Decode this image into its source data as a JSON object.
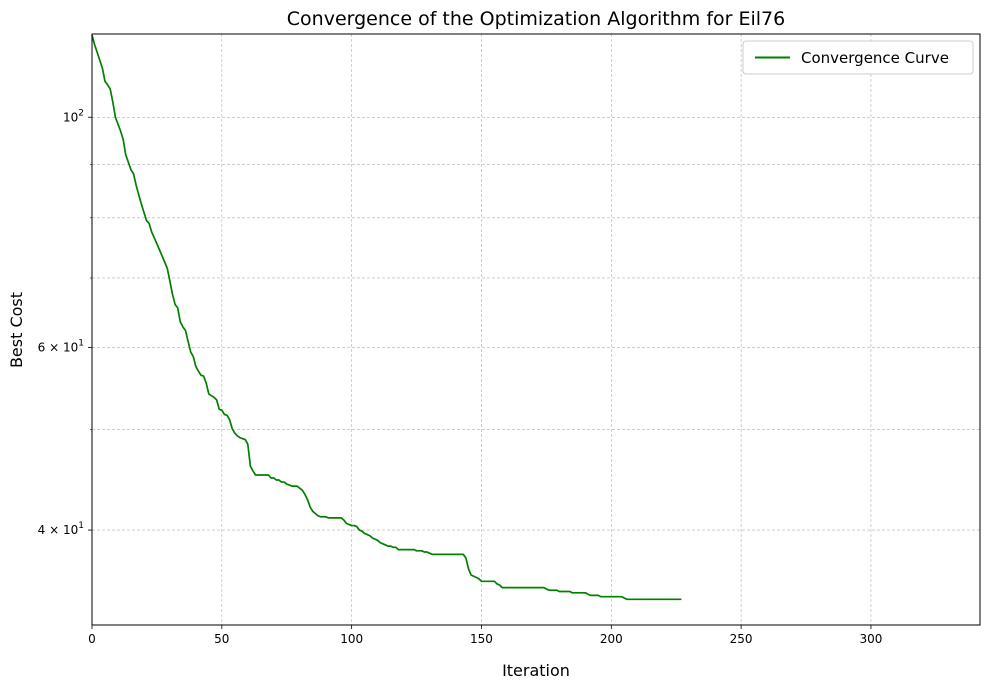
{
  "chart_data": {
    "type": "line",
    "title": "Convergence of the Optimization Algorithm for Eil76",
    "xlabel": "Iteration",
    "ylabel": "Best Cost",
    "xlim": [
      0,
      342
    ],
    "ylim": [
      32.4,
      120.3
    ],
    "yscale": "log",
    "grid": true,
    "legend_position": "top-right",
    "x_ticks": [
      0,
      50,
      100,
      150,
      200,
      250,
      300
    ],
    "y_major_ticks": [
      {
        "value": 100,
        "base": "10",
        "exp": "2",
        "mult": ""
      },
      {
        "value": 60,
        "base": "10",
        "exp": "1",
        "mult": "6 × "
      },
      {
        "value": 40,
        "base": "10",
        "exp": "1",
        "mult": "4 × "
      }
    ],
    "y_minor_ticks": [
      90,
      80,
      70,
      50
    ],
    "series": [
      {
        "name": "Convergence Curve",
        "color": "#008000",
        "points": [
          [
            0,
            120
          ],
          [
            1,
            117.5
          ],
          [
            2,
            115.5
          ],
          [
            3,
            113.5
          ],
          [
            4,
            111.5
          ],
          [
            5,
            108.3
          ],
          [
            6,
            107.5
          ],
          [
            7,
            106.5
          ],
          [
            8,
            103.5
          ],
          [
            9,
            100
          ],
          [
            10,
            98.5
          ],
          [
            11,
            97
          ],
          [
            12,
            95.2
          ],
          [
            13,
            92
          ],
          [
            14,
            90.5
          ],
          [
            15,
            89
          ],
          [
            16,
            88.2
          ],
          [
            17,
            86
          ],
          [
            18,
            84.2
          ],
          [
            19,
            82.5
          ],
          [
            20,
            81
          ],
          [
            21,
            79.5
          ],
          [
            22,
            79
          ],
          [
            23,
            77.5
          ],
          [
            24,
            76.5
          ],
          [
            25,
            75.5
          ],
          [
            26,
            74.5
          ],
          [
            27,
            73.5
          ],
          [
            28,
            72.5
          ],
          [
            29,
            71.5
          ],
          [
            30,
            69.5
          ],
          [
            31,
            67.5
          ],
          [
            32,
            66
          ],
          [
            33,
            65.5
          ],
          [
            34,
            63.5
          ],
          [
            35,
            62.8
          ],
          [
            36,
            62.3
          ],
          [
            37,
            60.8
          ],
          [
            38,
            59.4
          ],
          [
            39,
            58.8
          ],
          [
            40,
            57.5
          ],
          [
            41,
            56.9
          ],
          [
            42,
            56.4
          ],
          [
            43,
            56.3
          ],
          [
            44,
            55.4
          ],
          [
            45,
            54.1
          ],
          [
            46,
            53.9
          ],
          [
            47,
            53.7
          ],
          [
            48,
            53.4
          ],
          [
            49,
            52.3
          ],
          [
            50,
            52.2
          ],
          [
            51,
            51.7
          ],
          [
            52,
            51.6
          ],
          [
            53,
            51.1
          ],
          [
            54,
            50.1
          ],
          [
            55,
            49.6
          ],
          [
            56,
            49.3
          ],
          [
            57,
            49.1
          ],
          [
            58,
            49
          ],
          [
            59,
            48.9
          ],
          [
            60,
            48.4
          ],
          [
            61,
            46.1
          ],
          [
            62,
            45.6
          ],
          [
            63,
            45.2
          ],
          [
            64,
            45.2
          ],
          [
            65,
            45.2
          ],
          [
            66,
            45.2
          ],
          [
            67,
            45.2
          ],
          [
            68,
            45.2
          ],
          [
            69,
            44.9
          ],
          [
            70,
            44.9
          ],
          [
            71,
            44.7
          ],
          [
            72,
            44.7
          ],
          [
            73,
            44.5
          ],
          [
            74,
            44.5
          ],
          [
            75,
            44.3
          ],
          [
            76,
            44.2
          ],
          [
            77,
            44.1
          ],
          [
            78,
            44.1
          ],
          [
            79,
            44.1
          ],
          [
            80,
            43.9
          ],
          [
            81,
            43.7
          ],
          [
            82,
            43.3
          ],
          [
            83,
            42.8
          ],
          [
            84,
            42.1
          ],
          [
            85,
            41.7
          ],
          [
            86,
            41.5
          ],
          [
            87,
            41.3
          ],
          [
            88,
            41.2
          ],
          [
            89,
            41.2
          ],
          [
            90,
            41.2
          ],
          [
            91,
            41.1
          ],
          [
            92,
            41.1
          ],
          [
            93,
            41.1
          ],
          [
            94,
            41.1
          ],
          [
            95,
            41.1
          ],
          [
            96,
            41.1
          ],
          [
            97,
            40.9
          ],
          [
            98,
            40.6
          ],
          [
            99,
            40.5
          ],
          [
            100,
            40.4
          ],
          [
            101,
            40.4
          ],
          [
            102,
            40.3
          ],
          [
            103,
            40
          ],
          [
            104,
            39.9
          ],
          [
            105,
            39.7
          ],
          [
            106,
            39.6
          ],
          [
            107,
            39.5
          ],
          [
            108,
            39.3
          ],
          [
            109,
            39.2
          ],
          [
            110,
            39.1
          ],
          [
            111,
            38.9
          ],
          [
            112,
            38.8
          ],
          [
            113,
            38.7
          ],
          [
            114,
            38.6
          ],
          [
            115,
            38.6
          ],
          [
            116,
            38.5
          ],
          [
            117,
            38.5
          ],
          [
            118,
            38.3
          ],
          [
            119,
            38.3
          ],
          [
            120,
            38.3
          ],
          [
            121,
            38.3
          ],
          [
            122,
            38.3
          ],
          [
            123,
            38.3
          ],
          [
            124,
            38.3
          ],
          [
            125,
            38.2
          ],
          [
            126,
            38.2
          ],
          [
            127,
            38.2
          ],
          [
            128,
            38.1
          ],
          [
            129,
            38.1
          ],
          [
            130,
            38
          ],
          [
            131,
            37.9
          ],
          [
            132,
            37.9
          ],
          [
            133,
            37.9
          ],
          [
            134,
            37.9
          ],
          [
            135,
            37.9
          ],
          [
            136,
            37.9
          ],
          [
            137,
            37.9
          ],
          [
            138,
            37.9
          ],
          [
            139,
            37.9
          ],
          [
            140,
            37.9
          ],
          [
            141,
            37.9
          ],
          [
            142,
            37.9
          ],
          [
            143,
            37.9
          ],
          [
            144,
            37.6
          ],
          [
            145,
            36.7
          ],
          [
            146,
            36.2
          ],
          [
            147,
            36.1
          ],
          [
            148,
            36
          ],
          [
            149,
            35.9
          ],
          [
            150,
            35.7
          ],
          [
            151,
            35.7
          ],
          [
            152,
            35.7
          ],
          [
            153,
            35.7
          ],
          [
            154,
            35.7
          ],
          [
            155,
            35.7
          ],
          [
            156,
            35.5
          ],
          [
            157,
            35.4
          ],
          [
            158,
            35.2
          ],
          [
            159,
            35.2
          ],
          [
            160,
            35.2
          ],
          [
            161,
            35.2
          ],
          [
            162,
            35.2
          ],
          [
            163,
            35.2
          ],
          [
            164,
            35.2
          ],
          [
            165,
            35.2
          ],
          [
            166,
            35.2
          ],
          [
            167,
            35.2
          ],
          [
            168,
            35.2
          ],
          [
            169,
            35.2
          ],
          [
            170,
            35.2
          ],
          [
            171,
            35.2
          ],
          [
            172,
            35.2
          ],
          [
            173,
            35.2
          ],
          [
            174,
            35.2
          ],
          [
            175,
            35.1
          ],
          [
            176,
            35
          ],
          [
            177,
            35
          ],
          [
            178,
            35
          ],
          [
            179,
            35
          ],
          [
            180,
            34.9
          ],
          [
            181,
            34.9
          ],
          [
            182,
            34.9
          ],
          [
            183,
            34.9
          ],
          [
            184,
            34.9
          ],
          [
            185,
            34.8
          ],
          [
            186,
            34.8
          ],
          [
            187,
            34.8
          ],
          [
            188,
            34.8
          ],
          [
            189,
            34.8
          ],
          [
            190,
            34.8
          ],
          [
            191,
            34.7
          ],
          [
            192,
            34.6
          ],
          [
            193,
            34.6
          ],
          [
            194,
            34.6
          ],
          [
            195,
            34.6
          ],
          [
            196,
            34.5
          ],
          [
            197,
            34.5
          ],
          [
            198,
            34.5
          ],
          [
            199,
            34.5
          ],
          [
            200,
            34.5
          ],
          [
            201,
            34.5
          ],
          [
            202,
            34.5
          ],
          [
            203,
            34.5
          ],
          [
            204,
            34.5
          ],
          [
            205,
            34.4
          ],
          [
            206,
            34.3
          ],
          [
            207,
            34.3
          ],
          [
            208,
            34.3
          ],
          [
            209,
            34.3
          ],
          [
            210,
            34.3
          ],
          [
            211,
            34.3
          ],
          [
            212,
            34.3
          ],
          [
            213,
            34.3
          ],
          [
            214,
            34.3
          ],
          [
            215,
            34.3
          ],
          [
            216,
            34.3
          ],
          [
            217,
            34.3
          ],
          [
            218,
            34.3
          ],
          [
            219,
            34.3
          ],
          [
            220,
            34.3
          ],
          [
            221,
            34.3
          ],
          [
            222,
            34.3
          ],
          [
            223,
            34.3
          ],
          [
            224,
            34.3
          ],
          [
            225,
            34.3
          ],
          [
            226,
            34.3
          ],
          [
            227,
            34.3
          ]
        ]
      }
    ]
  }
}
